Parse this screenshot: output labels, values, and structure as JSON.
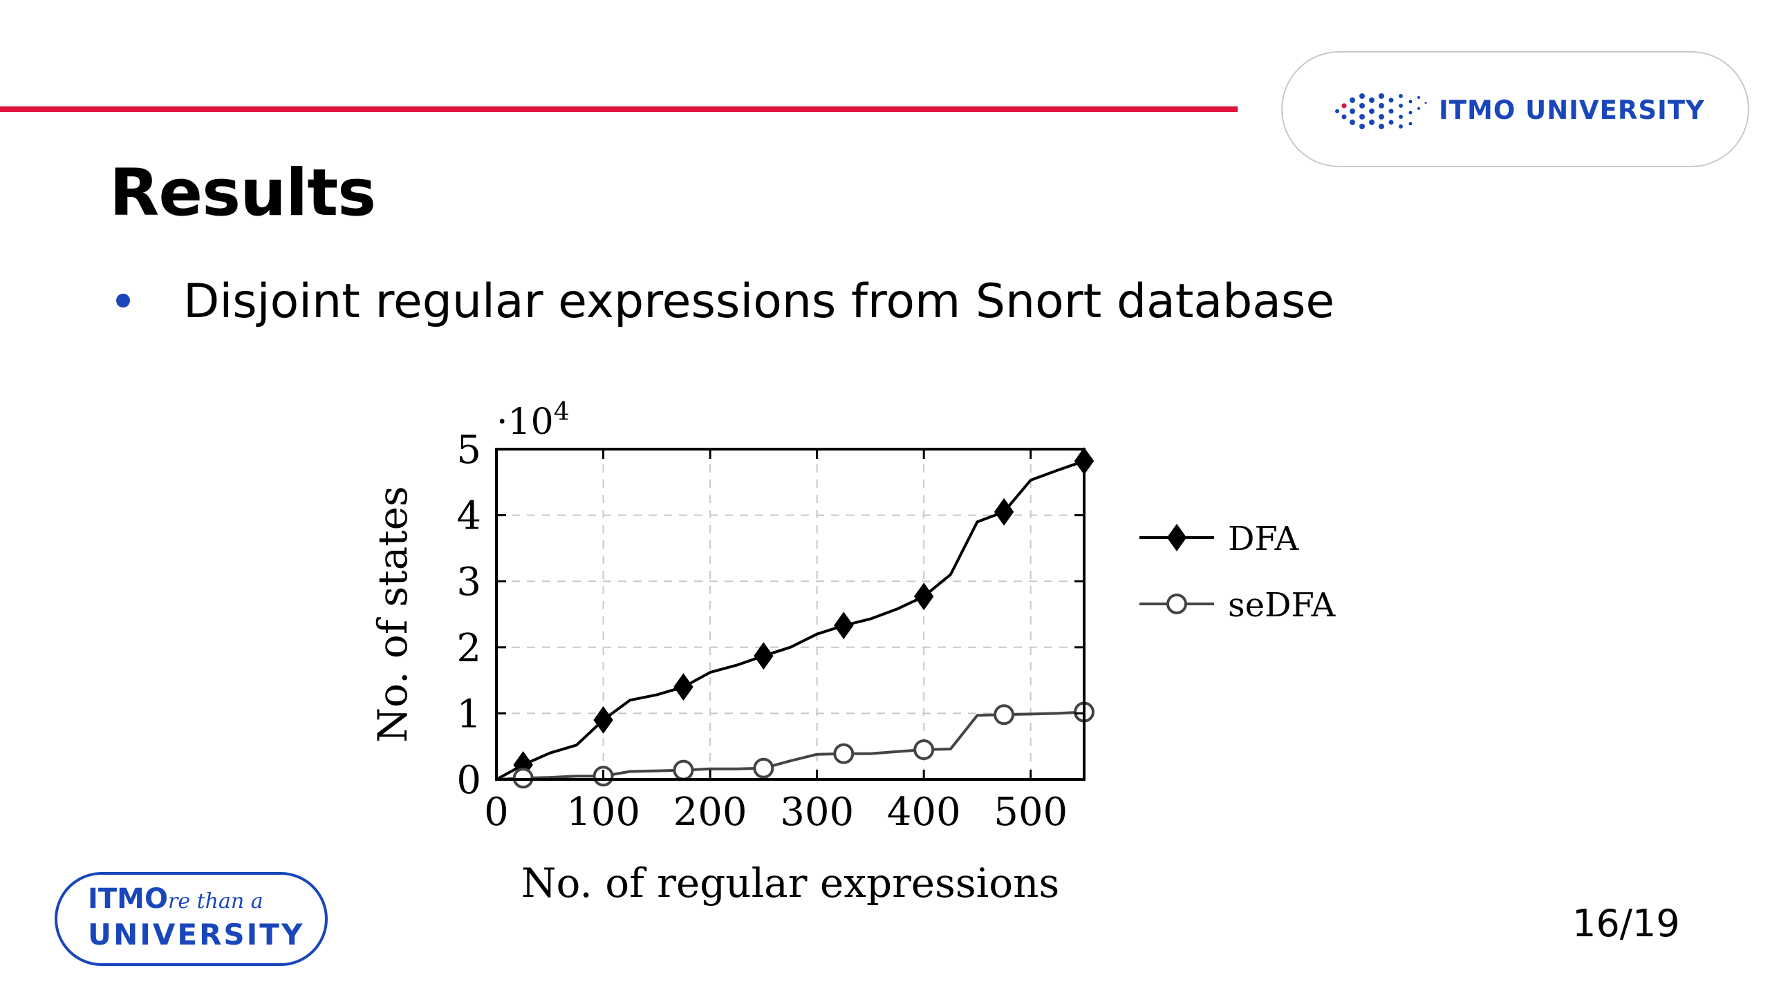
{
  "header": {
    "logo_text": "ITMO UNIVERSITY",
    "accent_color": "#dc143c",
    "brand_color": "#1946ba"
  },
  "slide": {
    "title": "Results",
    "bullet": "Disjoint regular expressions from Snort database",
    "page_number": "16/19"
  },
  "footer": {
    "logo_line1_a": "IT",
    "logo_line1_b": "MO",
    "logo_line1_script": "re than a",
    "logo_line2": "UNIVERSITY"
  },
  "chart_data": {
    "type": "line",
    "title": "",
    "xlabel": "No. of regular expressions",
    "ylabel": "No. of states",
    "y_multiplier_label": "·10",
    "y_multiplier_exp": "4",
    "xlim": [
      0,
      550
    ],
    "ylim": [
      0,
      5
    ],
    "x_ticks": [
      0,
      100,
      200,
      300,
      400,
      500
    ],
    "y_ticks": [
      0,
      1,
      2,
      3,
      4,
      5
    ],
    "grid": true,
    "legend_position": "right",
    "series": [
      {
        "name": "DFA",
        "marker": "diamond",
        "color": "#000000",
        "points": [
          [
            0,
            0
          ],
          [
            25,
            0.22
          ],
          [
            50,
            0.4
          ],
          [
            75,
            0.52
          ],
          [
            100,
            0.9
          ],
          [
            125,
            1.2
          ],
          [
            150,
            1.28
          ],
          [
            175,
            1.4
          ],
          [
            200,
            1.62
          ],
          [
            225,
            1.73
          ],
          [
            250,
            1.87
          ],
          [
            275,
            2.0
          ],
          [
            300,
            2.2
          ],
          [
            325,
            2.33
          ],
          [
            350,
            2.43
          ],
          [
            375,
            2.58
          ],
          [
            400,
            2.77
          ],
          [
            425,
            3.1
          ],
          [
            450,
            3.9
          ],
          [
            475,
            4.05
          ],
          [
            500,
            4.53
          ],
          [
            525,
            4.68
          ],
          [
            550,
            4.82
          ]
        ],
        "marker_x": [
          25,
          100,
          175,
          250,
          325,
          400,
          475,
          550
        ]
      },
      {
        "name": "seDFA",
        "marker": "circle",
        "color": "#444444",
        "points": [
          [
            0,
            0
          ],
          [
            25,
            0.02
          ],
          [
            50,
            0.03
          ],
          [
            75,
            0.05
          ],
          [
            100,
            0.05
          ],
          [
            125,
            0.12
          ],
          [
            150,
            0.13
          ],
          [
            175,
            0.14
          ],
          [
            200,
            0.16
          ],
          [
            225,
            0.16
          ],
          [
            250,
            0.17
          ],
          [
            275,
            0.28
          ],
          [
            300,
            0.38
          ],
          [
            325,
            0.39
          ],
          [
            350,
            0.39
          ],
          [
            375,
            0.42
          ],
          [
            400,
            0.45
          ],
          [
            425,
            0.46
          ],
          [
            450,
            0.97
          ],
          [
            475,
            0.98
          ],
          [
            500,
            0.99
          ],
          [
            525,
            1.0
          ],
          [
            550,
            1.02
          ]
        ],
        "marker_x": [
          25,
          100,
          175,
          250,
          325,
          400,
          475,
          550
        ]
      }
    ]
  }
}
